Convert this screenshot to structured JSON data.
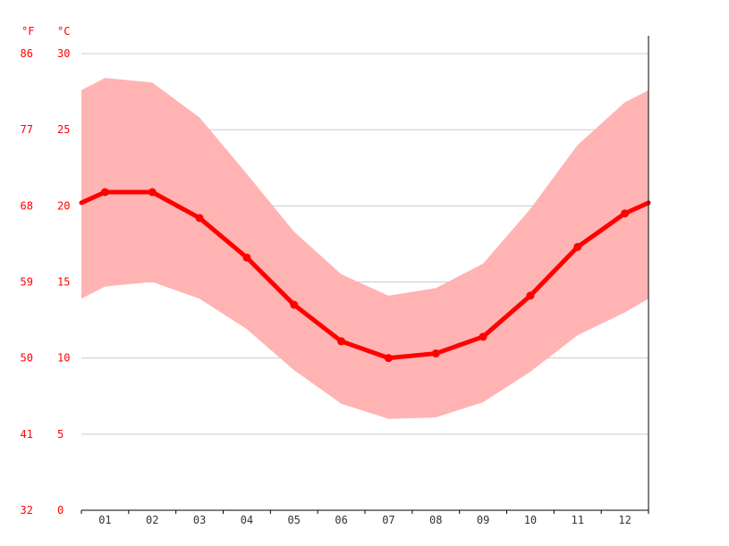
{
  "chart_data": {
    "type": "line",
    "title": "",
    "xlabel": "",
    "ylabel": "",
    "unit_labels": {
      "fahrenheit": "°F",
      "celsius": "°C"
    },
    "categories": [
      "01",
      "02",
      "03",
      "04",
      "05",
      "06",
      "07",
      "08",
      "09",
      "10",
      "11",
      "12"
    ],
    "y_ticks_c": [
      "30",
      "25",
      "20",
      "15",
      "10",
      "5",
      "0"
    ],
    "y_ticks_f": [
      "86",
      "77",
      "68",
      "59",
      "50",
      "41",
      "32"
    ],
    "ylim": [
      0,
      30
    ],
    "grid": true,
    "series": [
      {
        "type": "line",
        "values": [
          20.9,
          20.9,
          19.2,
          16.6,
          13.5,
          11.1,
          10.0,
          10.3,
          11.4,
          14.1,
          17.3,
          19.5
        ]
      },
      {
        "type": "band-upper",
        "values": [
          28.4,
          28.1,
          25.8,
          22.1,
          18.3,
          15.5,
          14.1,
          14.6,
          16.2,
          19.8,
          24.0,
          26.8
        ]
      },
      {
        "type": "band-lower",
        "values": [
          14.7,
          15.0,
          13.9,
          11.9,
          9.2,
          7.0,
          6.0,
          6.1,
          7.1,
          9.1,
          11.5,
          13.0
        ]
      }
    ],
    "band_edges": {
      "upper": [
        27.6,
        27.6
      ],
      "lower": [
        13.9,
        13.9
      ],
      "line": [
        20.2,
        20.2
      ]
    },
    "colors": {
      "line": "#ff0000",
      "band": "#ffb3b3",
      "grid": "#cccccc",
      "axis": "#000000",
      "text": "#ff0000",
      "month_text": "#333333"
    }
  }
}
